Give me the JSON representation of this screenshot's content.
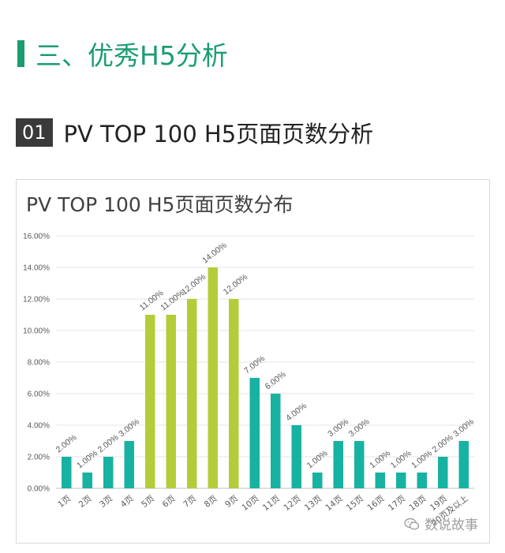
{
  "section": {
    "title": "三、优秀H5分析",
    "color": "#1a9e6f"
  },
  "subheading": {
    "number": "01",
    "title": "PV TOP 100 H5页面页数分析"
  },
  "watermark": {
    "text": "数说故事"
  },
  "chart_data": {
    "type": "bar",
    "title": "PV TOP 100 H5页面页数分布",
    "categories": [
      "1页",
      "2页",
      "3页",
      "4页",
      "5页",
      "6页",
      "7页",
      "8页",
      "9页",
      "10页",
      "11页",
      "12页",
      "13页",
      "14页",
      "15页",
      "16页",
      "17页",
      "18页",
      "19页",
      "20页及以上"
    ],
    "values": [
      2,
      1,
      2,
      3,
      11,
      11,
      12,
      14,
      12,
      7,
      6,
      4,
      1,
      3,
      3,
      1,
      1,
      1,
      2,
      3
    ],
    "data_labels": [
      "2.00%",
      "1.00%",
      "2.00%",
      "3.00%",
      "11.00%",
      "11.00%",
      "12.00%",
      "14.00%",
      "12.00%",
      "7.00%",
      "6.00%",
      "4.00%",
      "1.00%",
      "3.00%",
      "3.00%",
      "1.00%",
      "1.00%",
      "1.00%",
      "2.00%",
      "3.00%"
    ],
    "yticks": [
      "0.00%",
      "2.00%",
      "4.00%",
      "6.00%",
      "8.00%",
      "10.00%",
      "12.00%",
      "14.00%",
      "16.00%"
    ],
    "ylim": [
      0,
      16
    ],
    "grid": true,
    "highlight_categories": [
      "5页",
      "6页",
      "7页",
      "8页",
      "9页"
    ],
    "colors": {
      "default": "#17b2a2",
      "highlight": "#b5cc3a",
      "grid": "#e6e6e6",
      "label": "#595959"
    }
  }
}
